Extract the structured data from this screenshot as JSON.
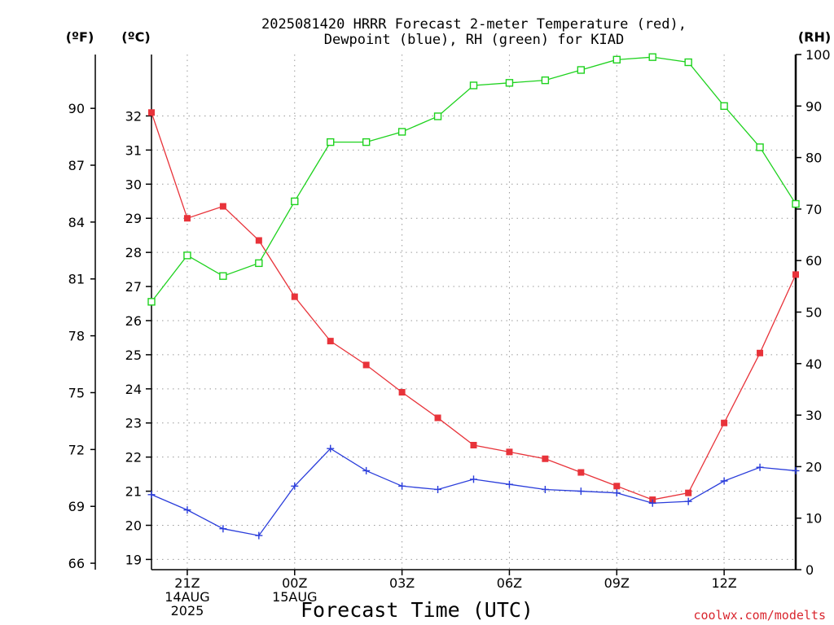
{
  "chart_data": {
    "type": "line",
    "title_line1": "2025081420 HRRR Forecast 2-meter Temperature (red),",
    "title_line2": "Dewpoint (blue), RH (green) for KIAD",
    "xlabel": "Forecast Time (UTC)",
    "units": {
      "fahrenheit": "(ºF)",
      "celsius": "(ºC)",
      "rh": "(RH)"
    },
    "credit": "coolwx.com/modelts",
    "x_hours": [
      20,
      21,
      22,
      23,
      24,
      25,
      26,
      27,
      28,
      29,
      30,
      31,
      32,
      33,
      34,
      35,
      36,
      37,
      38
    ],
    "x_ticks": [
      {
        "hour": 21,
        "lines": [
          "21Z",
          "14AUG",
          "2025"
        ]
      },
      {
        "hour": 24,
        "lines": [
          "00Z",
          "15AUG"
        ]
      },
      {
        "hour": 27,
        "lines": [
          "03Z"
        ]
      },
      {
        "hour": 30,
        "lines": [
          "06Z"
        ]
      },
      {
        "hour": 33,
        "lines": [
          "09Z"
        ]
      },
      {
        "hour": 36,
        "lines": [
          "12Z"
        ]
      }
    ],
    "celsius_ticks": [
      19,
      20,
      21,
      22,
      23,
      24,
      25,
      26,
      27,
      28,
      29,
      30,
      31,
      32
    ],
    "celsius_range": [
      18.7,
      33.8
    ],
    "fahrenheit_ticks": [
      66,
      69,
      72,
      75,
      78,
      81,
      84,
      87,
      90
    ],
    "rh_ticks": [
      0,
      10,
      20,
      30,
      40,
      50,
      60,
      70,
      80,
      90,
      100
    ],
    "rh_range": [
      0,
      100
    ],
    "series": [
      {
        "name": "Temperature",
        "color": "#e8333a",
        "marker": "filled-square",
        "axis": "celsius",
        "values": [
          32.1,
          29.0,
          29.35,
          28.35,
          26.7,
          25.4,
          24.7,
          23.9,
          23.15,
          22.35,
          22.15,
          21.95,
          21.55,
          21.15,
          20.75,
          20.95,
          23.0,
          25.05,
          27.35
        ]
      },
      {
        "name": "Dewpoint",
        "color": "#2a3ddb",
        "marker": "plus",
        "axis": "celsius",
        "values": [
          20.9,
          20.45,
          19.9,
          19.7,
          21.15,
          22.25,
          21.6,
          21.15,
          21.05,
          21.35,
          21.2,
          21.05,
          21.0,
          20.95,
          20.65,
          20.7,
          21.3,
          21.7,
          21.6
        ]
      },
      {
        "name": "RH",
        "color": "#1ed21e",
        "marker": "open-square",
        "axis": "rh",
        "values": [
          52,
          61,
          57,
          59.5,
          71.5,
          83,
          83,
          85,
          88,
          94,
          94.5,
          95,
          97,
          99,
          99.5,
          98.5,
          90,
          82,
          71
        ]
      }
    ]
  }
}
